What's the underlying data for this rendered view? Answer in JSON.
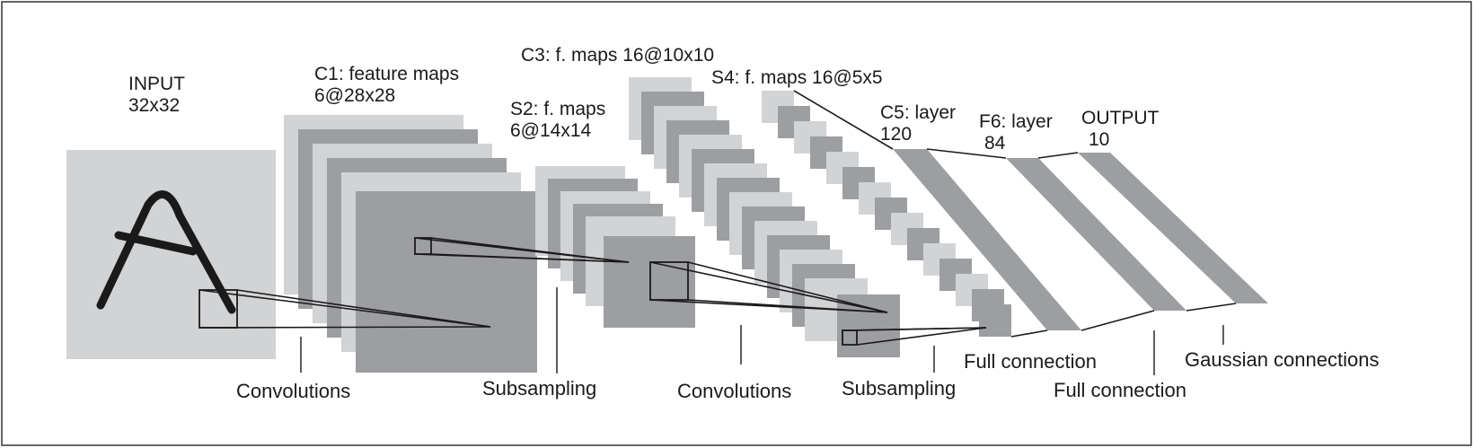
{
  "layers": {
    "input": {
      "line1": "INPUT",
      "line2": "32x32"
    },
    "c1": {
      "line1": "C1: feature maps",
      "line2": "6@28x28"
    },
    "s2": {
      "line1": "S2: f. maps",
      "line2": "6@14x14"
    },
    "c3": {
      "line1": "C3: f. maps 16@10x10"
    },
    "s4": {
      "line1": "S4: f. maps 16@5x5"
    },
    "c5": {
      "line1": "C5: layer",
      "line2": "120"
    },
    "f6": {
      "line1": "F6: layer",
      "line2": "84"
    },
    "output": {
      "line1": "OUTPUT",
      "line2": "10"
    }
  },
  "operations": {
    "conv1": "Convolutions",
    "sub1": "Subsampling",
    "conv2": "Convolutions",
    "sub2": "Subsampling",
    "full1": "Full connection",
    "full2": "Full connection",
    "gauss": "Gaussian connections"
  },
  "colors": {
    "light": "#d2d3d5",
    "dark": "#9d9ea1",
    "stroke": "#1a1a1a",
    "frame": "#333333"
  }
}
